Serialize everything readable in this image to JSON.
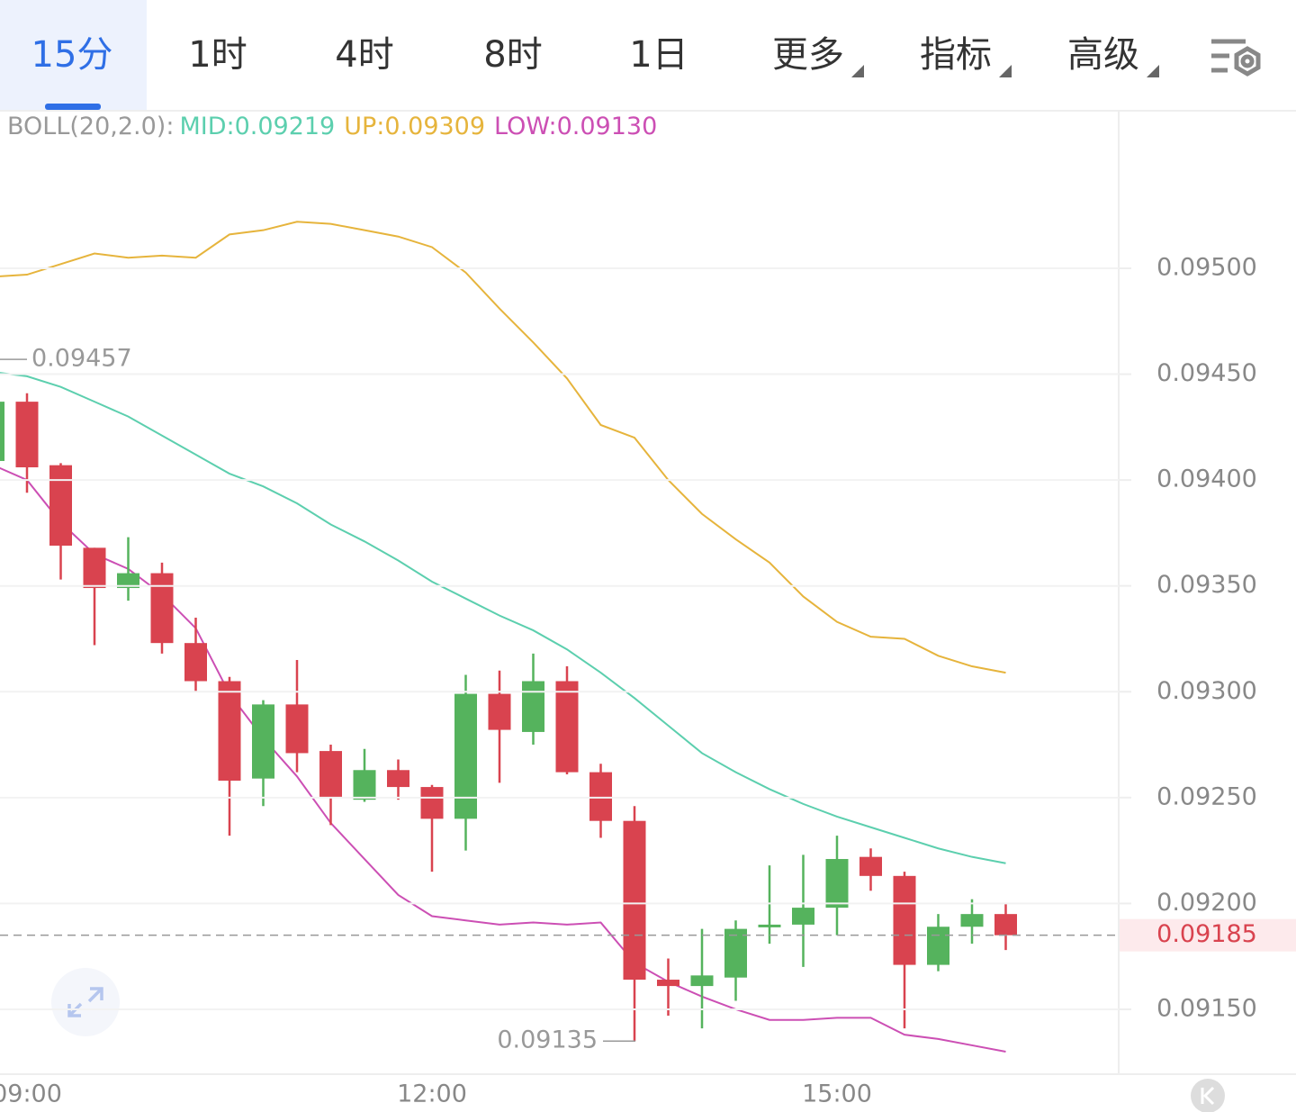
{
  "toolbar": {
    "tabs": [
      "15分",
      "1时",
      "4时",
      "8时",
      "1日",
      "更多",
      "指标",
      "高级"
    ],
    "active": 0
  },
  "chart_data": {
    "type": "candlestick",
    "indicator": "BOLL(20,2.0):",
    "categories": [
      null,
      "09:00",
      null,
      null,
      null,
      null,
      null,
      null,
      null,
      null,
      null,
      null,
      null,
      "12:00",
      null,
      null,
      null,
      null,
      null,
      null,
      null,
      null,
      null,
      null,
      null,
      "15:00",
      null,
      null,
      null,
      null,
      null
    ],
    "open": [
      0.09409,
      0.09437,
      0.09407,
      0.09368,
      0.09349,
      0.09356,
      0.09323,
      0.09305,
      0.09259,
      0.09294,
      0.09272,
      0.09249,
      0.09263,
      0.09255,
      0.0924,
      0.09299,
      0.09281,
      0.09305,
      0.09262,
      0.09239,
      0.09164,
      0.09161,
      0.09165,
      0.09189,
      0.0919,
      0.09198,
      0.09222,
      0.09213,
      0.09171,
      0.09189,
      0.09195
    ],
    "high": [
      0.0944,
      0.09441,
      0.09408,
      0.09368,
      0.09373,
      0.09361,
      0.09335,
      0.09307,
      0.09296,
      0.09315,
      0.09275,
      0.09273,
      0.09268,
      0.09256,
      0.09308,
      0.0931,
      0.09318,
      0.09312,
      0.09266,
      0.09246,
      0.09174,
      0.09188,
      0.09192,
      0.09218,
      0.09223,
      0.09232,
      0.09226,
      0.09215,
      0.09195,
      0.09202,
      0.092
    ],
    "low": [
      0.09408,
      0.09394,
      0.09353,
      0.09322,
      0.09343,
      0.09318,
      0.093,
      0.09232,
      0.09246,
      0.09262,
      0.09237,
      0.09248,
      0.09249,
      0.09215,
      0.09225,
      0.09257,
      0.09275,
      0.09261,
      0.09231,
      0.09135,
      0.09147,
      0.09141,
      0.09154,
      0.09181,
      0.0917,
      0.09185,
      0.09206,
      0.09141,
      0.09168,
      0.09181,
      0.09178
    ],
    "close": [
      0.09437,
      0.09406,
      0.09369,
      0.09349,
      0.09356,
      0.09323,
      0.09305,
      0.09258,
      0.09294,
      0.09271,
      0.0925,
      0.09263,
      0.09255,
      0.0924,
      0.09299,
      0.09282,
      0.09305,
      0.09262,
      0.09239,
      0.09164,
      0.09161,
      0.09166,
      0.09188,
      0.0919,
      0.09198,
      0.09221,
      0.09213,
      0.09171,
      0.09189,
      0.09195,
      0.09185
    ],
    "up_color": "#55b35d",
    "down_color": "#d9434f",
    "series": [
      {
        "name": "MID:0.09219",
        "color": "#5ccfae",
        "values": [
          0.09451,
          0.09449,
          0.09444,
          0.09437,
          0.0943,
          0.09421,
          0.09412,
          0.09403,
          0.09397,
          0.09389,
          0.09379,
          0.09371,
          0.09362,
          0.09352,
          0.09344,
          0.09336,
          0.09329,
          0.0932,
          0.09309,
          0.09297,
          0.09284,
          0.09271,
          0.09262,
          0.09254,
          0.09247,
          0.09241,
          0.09236,
          0.09231,
          0.09226,
          0.09222,
          0.09219
        ]
      },
      {
        "name": "UP:0.09309",
        "color": "#e6b43c",
        "values": [
          0.09496,
          0.09497,
          0.09502,
          0.09507,
          0.09505,
          0.09506,
          0.09505,
          0.09516,
          0.09518,
          0.09522,
          0.09521,
          0.09518,
          0.09515,
          0.0951,
          0.09498,
          0.09481,
          0.09465,
          0.09448,
          0.09426,
          0.0942,
          0.094,
          0.09384,
          0.09372,
          0.09361,
          0.09345,
          0.09333,
          0.09326,
          0.09325,
          0.09317,
          0.09312,
          0.09309
        ]
      },
      {
        "name": "LOW:0.09130",
        "color": "#cc4fb4",
        "values": [
          0.09407,
          0.094,
          0.0938,
          0.09365,
          0.09358,
          0.09346,
          0.0933,
          0.09299,
          0.09278,
          0.0926,
          0.09238,
          0.09221,
          0.09204,
          0.09194,
          0.09192,
          0.0919,
          0.09191,
          0.0919,
          0.09191,
          0.09172,
          0.09163,
          0.09156,
          0.0915,
          0.09145,
          0.09145,
          0.09146,
          0.09146,
          0.09138,
          0.09136,
          0.09133,
          0.0913
        ]
      }
    ],
    "ylim": [
      0.0912,
      0.0957
    ],
    "yticks": [
      {
        "value": 0.095,
        "label": "0.09500"
      },
      {
        "value": 0.0945,
        "label": "0.09450"
      },
      {
        "value": 0.094,
        "label": "0.09400"
      },
      {
        "value": 0.0935,
        "label": "0.09350"
      },
      {
        "value": 0.093,
        "label": "0.09300"
      },
      {
        "value": 0.0925,
        "label": "0.09250"
      },
      {
        "value": 0.092,
        "label": "0.09200"
      },
      {
        "value": 0.0915,
        "label": "0.09150"
      }
    ],
    "grid": true,
    "last_price": 0.09185,
    "annotations": [
      {
        "value": 0.09457
      },
      {
        "value": 0.09135
      }
    ]
  }
}
